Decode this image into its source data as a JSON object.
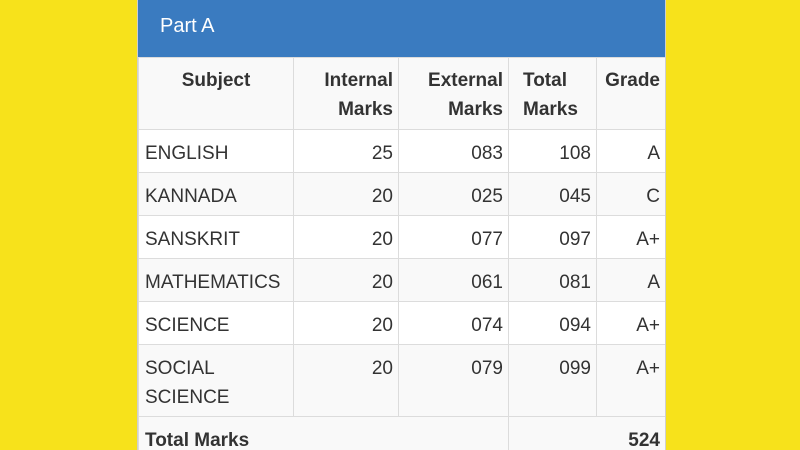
{
  "panel": {
    "title": "Part A"
  },
  "columns": {
    "subject": "Subject",
    "internal": "Internal Marks",
    "external": "External Marks",
    "total": "Total Marks",
    "grade": "Grade"
  },
  "rows": [
    {
      "subject": "ENGLISH",
      "internal": "25",
      "external": "083",
      "total": "108",
      "grade": "A"
    },
    {
      "subject": "KANNADA",
      "internal": "20",
      "external": "025",
      "total": "045",
      "grade": "C"
    },
    {
      "subject": "SANSKRIT",
      "internal": "20",
      "external": "077",
      "total": "097",
      "grade": "A+"
    },
    {
      "subject": "MATHEMATICS",
      "internal": "20",
      "external": "061",
      "total": "081",
      "grade": "A"
    },
    {
      "subject": "SCIENCE",
      "internal": "20",
      "external": "074",
      "total": "094",
      "grade": "A+"
    },
    {
      "subject": "SOCIAL SCIENCE",
      "internal": "20",
      "external": "079",
      "total": "099",
      "grade": "A+"
    }
  ],
  "summary": {
    "label": "Total Marks",
    "value": "524"
  },
  "colors": {
    "background": "#f7e21b",
    "header": "#3a7bc0"
  }
}
